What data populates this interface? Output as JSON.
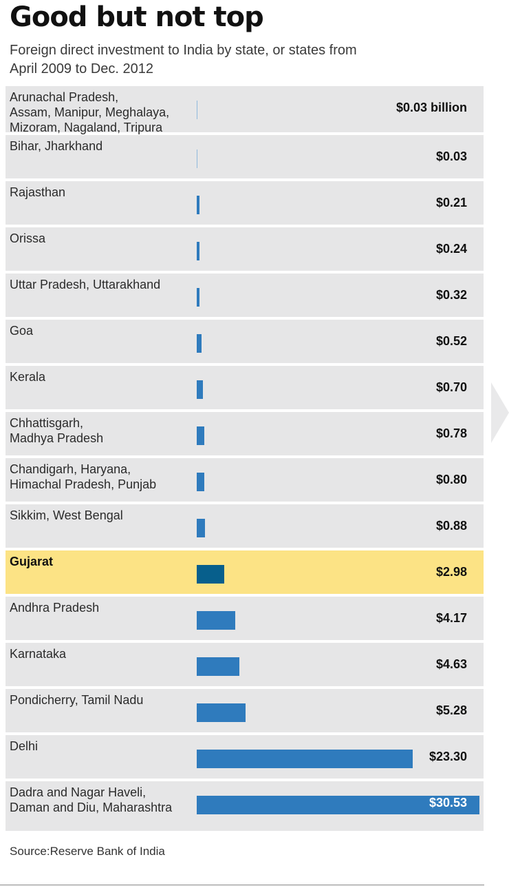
{
  "title": "Good but not top",
  "subtitle": "Foreign direct investment to India by state, or states from April 2009 to  Dec. 2012",
  "source": "Source:Reserve Bank of India",
  "colors": {
    "bar": "#2f7bbd",
    "highlight_bar": "#075f8c",
    "highlight_row": "#fce385",
    "row_bg": "#e6e6e7"
  },
  "chart_data": {
    "type": "bar",
    "orientation": "horizontal",
    "title": "Good but not top",
    "subtitle": "Foreign direct investment to India by state, or states from April 2009 to  Dec. 2012",
    "unit": "billion US$",
    "xlim": [
      0,
      30.53
    ],
    "grid": false,
    "highlight": "Gujarat",
    "categories": [
      "Arunachal Pradesh,\nAssam, Manipur, Meghalaya,\nMizoram, Nagaland, Tripura",
      "Bihar, Jharkhand",
      "Rajasthan",
      "Orissa",
      "Uttar Pradesh, Uttarakhand",
      "Goa",
      "Kerala",
      "Chhattisgarh,\nMadhya Pradesh",
      "Chandigarh, Haryana,\nHimachal Pradesh, Punjab",
      "Sikkim, West Bengal",
      "Gujarat",
      "Andhra Pradesh",
      "Karnataka",
      "Pondicherry, Tamil Nadu",
      "Delhi",
      "Dadra and Nagar Haveli,\nDaman and Diu, Maharashtra"
    ],
    "values": [
      0.03,
      0.03,
      0.21,
      0.24,
      0.32,
      0.52,
      0.7,
      0.78,
      0.8,
      0.88,
      2.98,
      4.17,
      4.63,
      5.28,
      23.3,
      30.53
    ],
    "value_labels": [
      "$0.03 billion",
      "$0.03",
      "$0.21",
      "$0.24",
      "$0.32",
      "$0.52",
      "$0.70",
      "$0.78",
      "$0.80",
      "$0.88",
      "$2.98",
      "$4.17",
      "$4.63",
      "$5.28",
      "$23.30",
      "$30.53"
    ]
  }
}
